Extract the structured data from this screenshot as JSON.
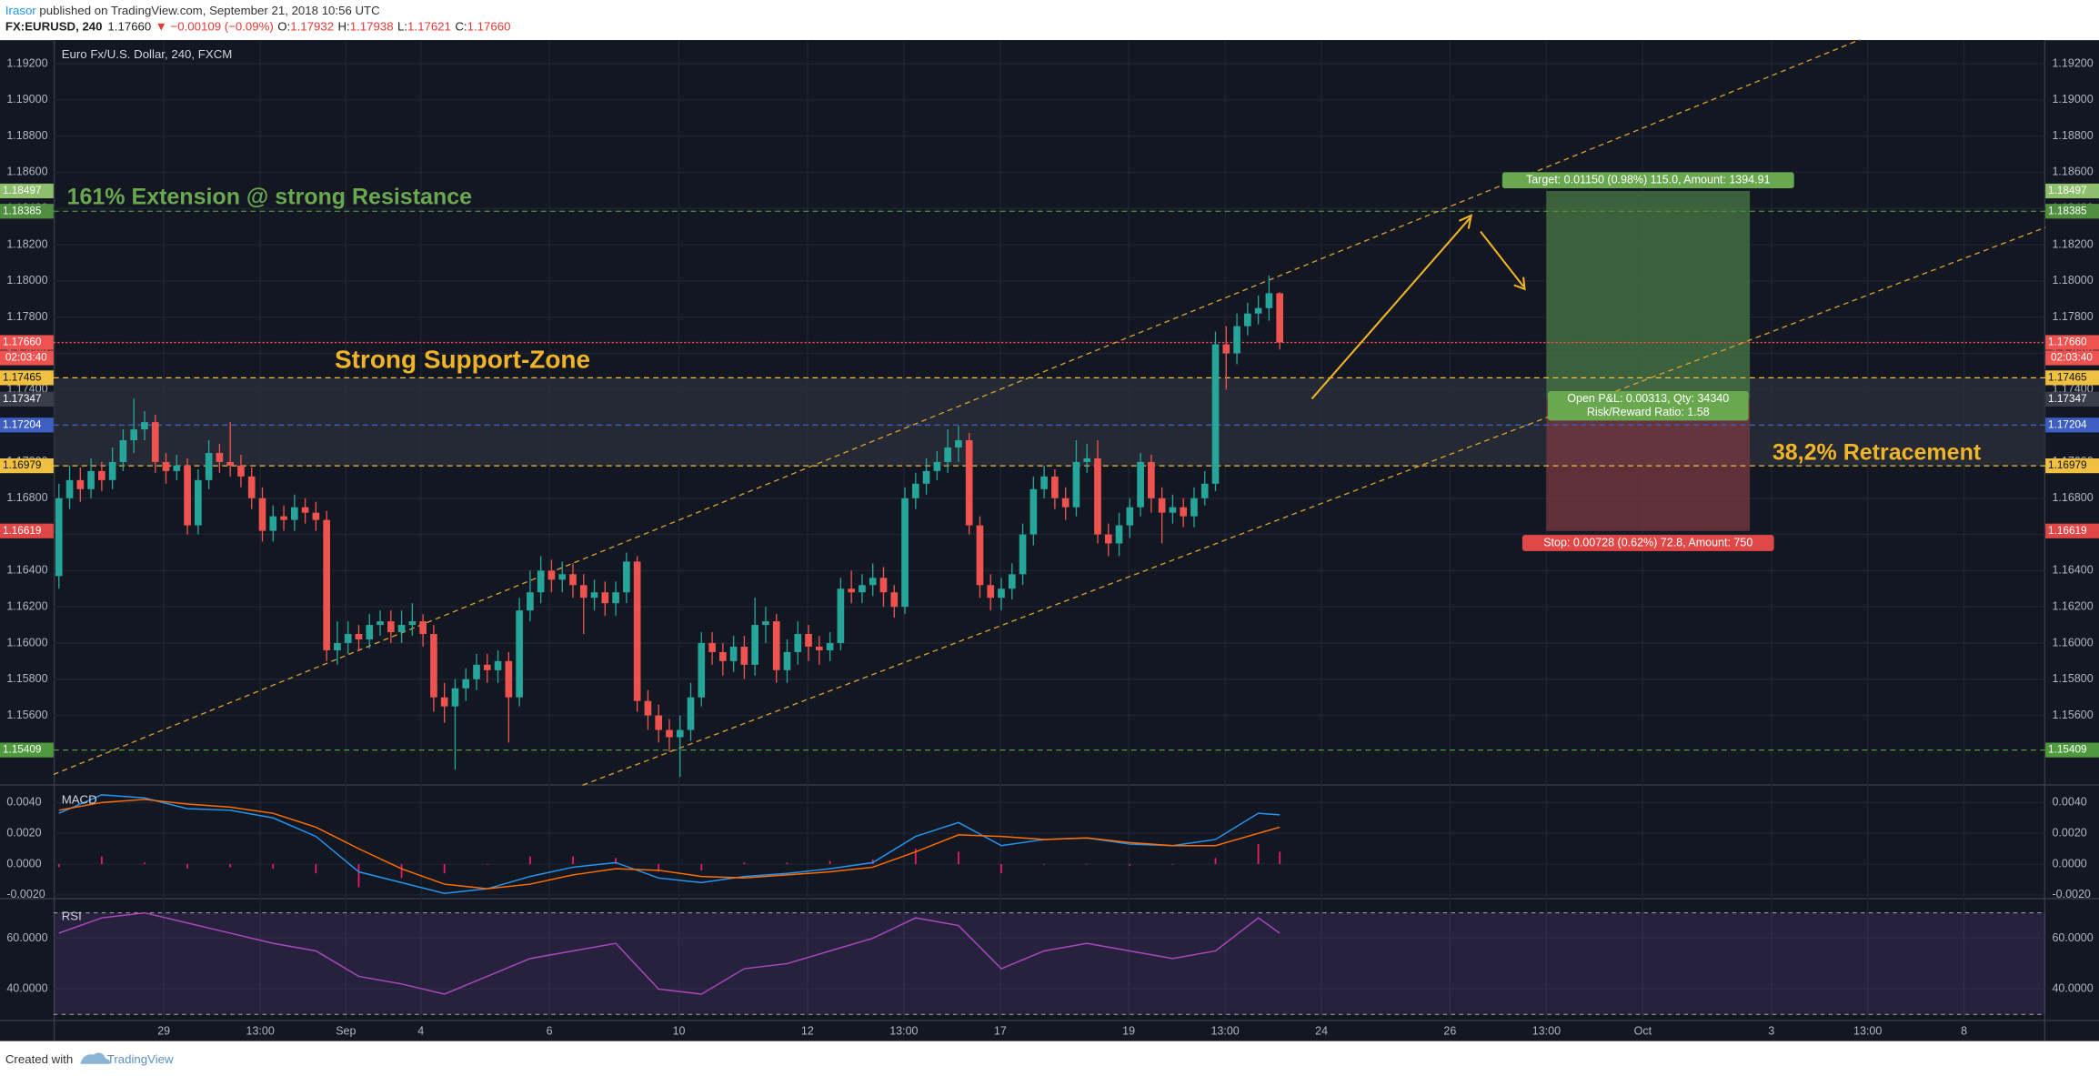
{
  "header": {
    "author": "Irasor",
    "published": " published on TradingView.com, September 21, 2018 10:56 UTC",
    "symbol": "FX:EURUSD, 240",
    "price": "1.17660",
    "change": "▼ −0.00109 (−0.09%)",
    "ohlc": [
      {
        "key": "O:",
        "value": "1.17932"
      },
      {
        "key": "H:",
        "value": "1.17938"
      },
      {
        "key": "L:",
        "value": "1.17621"
      },
      {
        "key": "C:",
        "value": "1.17660"
      }
    ]
  },
  "footer": {
    "created": "Created with",
    "brand": "TradingView"
  },
  "chart_data": {
    "type": "candlestick",
    "title": "Euro Fx/U.S. Dollar, 240, FXCM",
    "open": [
      1.1637,
      1.168,
      1.169,
      1.1685,
      1.1695,
      1.169,
      1.17,
      1.1712,
      1.1718,
      1.1722,
      1.17,
      1.1695,
      1.1698,
      1.1665,
      1.169,
      1.1705,
      1.17,
      1.1698,
      1.1692,
      1.168,
      1.1662,
      1.167,
      1.1668,
      1.1675,
      1.1672,
      1.1668,
      1.1596,
      1.16,
      1.1605,
      1.1602,
      1.161,
      1.1612,
      1.1606,
      1.161,
      1.1612,
      1.1605,
      1.157,
      1.1565,
      1.1575,
      1.158,
      1.1588,
      1.1585,
      1.159,
      1.157,
      1.1618,
      1.1628,
      1.164,
      1.1635,
      1.1638,
      1.1632,
      1.1625,
      1.1628,
      1.1622,
      1.1628,
      1.1645,
      1.1568,
      1.156,
      1.1552,
      1.1548,
      1.1552,
      1.157,
      1.16,
      1.1595,
      1.159,
      1.1598,
      1.1588,
      1.161,
      1.1612,
      1.1585,
      1.1595,
      1.1605,
      1.1598,
      1.1596,
      1.16,
      1.163,
      1.1628,
      1.1632,
      1.1636,
      1.1628,
      1.162,
      1.168,
      1.1688,
      1.1695,
      1.17,
      1.1708,
      1.1712,
      1.1665,
      1.1632,
      1.1625,
      1.163,
      1.1638,
      1.166,
      1.1685,
      1.1692,
      1.168,
      1.1675,
      1.17,
      1.1702,
      1.166,
      1.1655,
      1.1665,
      1.1675,
      1.17,
      1.168,
      1.1672,
      1.1675,
      1.167,
      1.168,
      1.1688,
      1.1765,
      1.176,
      1.1775,
      1.1782,
      1.1785,
      1.17932
    ],
    "high": [
      1.1688,
      1.1698,
      1.1697,
      1.1702,
      1.17,
      1.1708,
      1.1718,
      1.1735,
      1.1728,
      1.1726,
      1.1705,
      1.1704,
      1.1702,
      1.1696,
      1.1712,
      1.171,
      1.1722,
      1.1704,
      1.1697,
      1.1686,
      1.1676,
      1.1676,
      1.1682,
      1.168,
      1.1678,
      1.1673,
      1.1612,
      1.1612,
      1.161,
      1.1616,
      1.1618,
      1.1618,
      1.1618,
      1.1622,
      1.1616,
      1.161,
      1.1578,
      1.158,
      1.1586,
      1.1594,
      1.1594,
      1.1596,
      1.1595,
      1.1625,
      1.164,
      1.1648,
      1.1646,
      1.1645,
      1.1644,
      1.1638,
      1.1635,
      1.1634,
      1.1634,
      1.165,
      1.1648,
      1.1574,
      1.1566,
      1.1558,
      1.156,
      1.1578,
      1.1606,
      1.1606,
      1.16,
      1.1604,
      1.1604,
      1.1625,
      1.162,
      1.1616,
      1.1602,
      1.1612,
      1.161,
      1.1604,
      1.1606,
      1.1636,
      1.164,
      1.1638,
      1.1644,
      1.1642,
      1.1632,
      1.1686,
      1.1694,
      1.1702,
      1.1706,
      1.1718,
      1.172,
      1.1716,
      1.167,
      1.1638,
      1.1636,
      1.1644,
      1.1666,
      1.1692,
      1.1698,
      1.1696,
      1.1686,
      1.1712,
      1.171,
      1.1712,
      1.1666,
      1.1672,
      1.168,
      1.1705,
      1.1704,
      1.1686,
      1.1682,
      1.168,
      1.1686,
      1.1695,
      1.1772,
      1.1775,
      1.1782,
      1.1788,
      1.1792,
      1.1803,
      1.17938
    ],
    "low": [
      1.163,
      1.1674,
      1.1678,
      1.168,
      1.1684,
      1.1685,
      1.1695,
      1.1705,
      1.1712,
      1.1694,
      1.1688,
      1.169,
      1.166,
      1.166,
      1.1685,
      1.1694,
      1.1692,
      1.1686,
      1.1674,
      1.1656,
      1.1656,
      1.1662,
      1.1662,
      1.1666,
      1.1662,
      1.159,
      1.1588,
      1.1594,
      1.1596,
      1.1597,
      1.1604,
      1.16,
      1.16,
      1.1604,
      1.1598,
      1.1562,
      1.1556,
      1.153,
      1.1568,
      1.1574,
      1.1578,
      1.1578,
      1.1545,
      1.1565,
      1.1612,
      1.1622,
      1.1628,
      1.1628,
      1.1625,
      1.1605,
      1.1618,
      1.1615,
      1.1615,
      1.1622,
      1.1562,
      1.1552,
      1.1545,
      1.154,
      1.1526,
      1.1546,
      1.1565,
      1.1588,
      1.1582,
      1.1584,
      1.158,
      1.1582,
      1.16,
      1.1578,
      1.1578,
      1.1588,
      1.159,
      1.1588,
      1.159,
      1.1596,
      1.1622,
      1.1622,
      1.1626,
      1.162,
      1.1614,
      1.1616,
      1.1674,
      1.1682,
      1.169,
      1.1694,
      1.17,
      1.166,
      1.1625,
      1.1618,
      1.1618,
      1.1624,
      1.1632,
      1.1654,
      1.168,
      1.1674,
      1.1668,
      1.167,
      1.1694,
      1.1655,
      1.1648,
      1.1648,
      1.1658,
      1.167,
      1.1672,
      1.1655,
      1.1666,
      1.1664,
      1.1664,
      1.1676,
      1.1684,
      1.174,
      1.1754,
      1.177,
      1.1776,
      1.1778,
      1.17621
    ],
    "close": [
      1.168,
      1.169,
      1.1685,
      1.1695,
      1.169,
      1.17,
      1.1712,
      1.1718,
      1.1722,
      1.17,
      1.1695,
      1.1698,
      1.1665,
      1.169,
      1.1705,
      1.17,
      1.1698,
      1.1692,
      1.168,
      1.1662,
      1.167,
      1.1668,
      1.1675,
      1.1672,
      1.1668,
      1.1596,
      1.16,
      1.1605,
      1.1602,
      1.161,
      1.1612,
      1.1606,
      1.161,
      1.1612,
      1.1605,
      1.157,
      1.1565,
      1.1575,
      1.158,
      1.1588,
      1.1585,
      1.159,
      1.157,
      1.1618,
      1.1628,
      1.164,
      1.1635,
      1.1638,
      1.1632,
      1.1625,
      1.1628,
      1.1622,
      1.1628,
      1.1645,
      1.1568,
      1.156,
      1.1552,
      1.1548,
      1.1552,
      1.157,
      1.16,
      1.1595,
      1.159,
      1.1598,
      1.1588,
      1.161,
      1.1612,
      1.1585,
      1.1595,
      1.1605,
      1.1598,
      1.1596,
      1.16,
      1.163,
      1.1628,
      1.1632,
      1.1636,
      1.1628,
      1.162,
      1.168,
      1.1688,
      1.1695,
      1.17,
      1.1708,
      1.1712,
      1.1665,
      1.1632,
      1.1625,
      1.163,
      1.1638,
      1.166,
      1.1685,
      1.1692,
      1.168,
      1.1675,
      1.17,
      1.1702,
      1.166,
      1.1655,
      1.1665,
      1.1675,
      1.17,
      1.168,
      1.1672,
      1.1675,
      1.167,
      1.168,
      1.1688,
      1.1765,
      1.176,
      1.1775,
      1.1782,
      1.1785,
      1.17932,
      1.1766
    ],
    "up_color": "#26a69a",
    "down_color": "#ef5350",
    "xlim": [
      -0.5,
      185.5
    ],
    "xticks": [
      {
        "value": 9.8,
        "label": "29"
      },
      {
        "value": 18.8,
        "label": "13:00"
      },
      {
        "value": 26.8,
        "label": "Sep"
      },
      {
        "value": 33.8,
        "label": "4"
      },
      {
        "value": 45.8,
        "label": "6"
      },
      {
        "value": 57.9,
        "label": "10"
      },
      {
        "value": 69.9,
        "label": "12"
      },
      {
        "value": 78.9,
        "label": "13:00"
      },
      {
        "value": 87.9,
        "label": "17"
      },
      {
        "value": 99.9,
        "label": "19"
      },
      {
        "value": 108.9,
        "label": "13:00"
      },
      {
        "value": 117.9,
        "label": "24"
      },
      {
        "value": 129.9,
        "label": "26"
      },
      {
        "value": 138.9,
        "label": "13:00"
      },
      {
        "value": 147.9,
        "label": "Oct"
      },
      {
        "value": 159.9,
        "label": "3"
      },
      {
        "value": 168.9,
        "label": "13:00"
      },
      {
        "value": 177.9,
        "label": "8"
      }
    ],
    "ylim": [
      1.1522,
      1.1933
    ],
    "yticks": [
      {
        "value": 1.156,
        "label": "1.15600"
      },
      {
        "value": 1.158,
        "label": "1.15800"
      },
      {
        "value": 1.16,
        "label": "1.16000"
      },
      {
        "value": 1.162,
        "label": "1.16200"
      },
      {
        "value": 1.164,
        "label": "1.16400"
      },
      {
        "value": 1.166,
        "label": "1.16600"
      },
      {
        "value": 1.168,
        "label": "1.16800"
      },
      {
        "value": 1.17,
        "label": "1.17000"
      },
      {
        "value": 1.172,
        "label": "1.17200"
      },
      {
        "value": 1.174,
        "label": "1.17400"
      },
      {
        "value": 1.176,
        "label": "1.17600"
      },
      {
        "value": 1.178,
        "label": "1.17800"
      },
      {
        "value": 1.18,
        "label": "1.18000"
      },
      {
        "value": 1.182,
        "label": "1.18200"
      },
      {
        "value": 1.184,
        "label": "1.18400"
      },
      {
        "value": 1.186,
        "label": "1.18600"
      },
      {
        "value": 1.188,
        "label": "1.18800"
      },
      {
        "value": 1.19,
        "label": "1.19000"
      },
      {
        "value": 1.192,
        "label": "1.19200"
      }
    ],
    "grid": true,
    "zone": {
      "from": 1.16979,
      "to": 1.17465,
      "color": "#2a2e39"
    },
    "levels": [
      {
        "value": 1.18497,
        "label": "1.18497",
        "color": "#8dbf6c"
      },
      {
        "value": 1.18385,
        "label": "1.18385",
        "color": "#4f8f3f",
        "line": "dashed"
      },
      {
        "value": 1.1766,
        "label": "1.17660",
        "color": "#ef5350",
        "line": "dotted"
      },
      {
        "value": 1.17465,
        "label": "1.17465",
        "color": "#f0c040",
        "line": "dashed"
      },
      {
        "value": 1.17347,
        "label": "1.17347",
        "color": "#3a3e4a"
      },
      {
        "value": 1.17204,
        "label": "1.17204",
        "color": "#3d5fc4",
        "line": "dashed"
      },
      {
        "value": 1.16979,
        "label": "1.16979",
        "color": "#f0c040",
        "line": "dashed"
      },
      {
        "value": 1.16619,
        "label": "1.16619",
        "color": "#e04848"
      },
      {
        "value": 1.15409,
        "label": "1.15409",
        "color": "#4f9a3f",
        "line": "dashed"
      }
    ],
    "countdown": "02:03:40",
    "trendlines": [
      {
        "color": "#d9a030",
        "points": [
          [
            -0.5,
            1.15274
          ],
          [
            168.2,
            1.19333
          ]
        ]
      },
      {
        "color": "#d9a030",
        "points": [
          [
            48.9,
            1.15215
          ],
          [
            185.5,
            1.18296
          ]
        ]
      }
    ],
    "position": {
      "x_from": 138.9,
      "x_to": 157.9,
      "entry": 1.17347,
      "target": 1.18497,
      "stop": 1.16619,
      "target_label": "Target: 0.01150 (0.98%) 115.0, Amount: 1394.91",
      "pnl_label": "Open P&L: 0.00313, Qty: 34340",
      "ratio_label": "Risk/Reward Ratio: 1.58",
      "stop_label": "Stop: 0.00728 (0.62%) 72.8, Amount: 750"
    },
    "annotations": [
      {
        "text": "161% Extension @ strong Resistance",
        "color": "#6aa84f"
      },
      {
        "text": "Strong Support-Zone",
        "color": "#f0b429"
      },
      {
        "text": "38,2% Retracement",
        "color": "#f0b429"
      }
    ]
  },
  "macd": {
    "title": "MACD",
    "x": [
      0,
      4,
      8,
      12,
      16,
      20,
      24,
      28,
      32,
      36,
      40,
      44,
      48,
      52,
      56,
      60,
      64,
      68,
      72,
      76,
      80,
      84,
      88,
      92,
      96,
      100,
      104,
      108,
      112,
      114
    ],
    "ylim": [
      -0.0022,
      0.0051
    ],
    "yticks": [
      {
        "value": 0.004,
        "label": "0.0040"
      },
      {
        "value": 0.002,
        "label": "0.0020"
      },
      {
        "value": 0,
        "label": "0.0000"
      },
      {
        "value": -0.002,
        "label": "-0.0020"
      }
    ],
    "series": [
      {
        "color": "#2196f3",
        "values": [
          0.0033,
          0.0045,
          0.0043,
          0.0036,
          0.0035,
          0.003,
          0.0018,
          -0.0005,
          -0.0012,
          -0.0019,
          -0.0016,
          -0.0008,
          -0.0002,
          0.0001,
          -0.0009,
          -0.0012,
          -0.0008,
          -0.0006,
          -0.0003,
          0.0001,
          0.0018,
          0.0027,
          0.0012,
          0.0016,
          0.0017,
          0.0013,
          0.0012,
          0.0016,
          0.0033,
          0.0032
        ]
      },
      {
        "color": "#ff6d00",
        "values": [
          0.0035,
          0.004,
          0.0042,
          0.0039,
          0.0037,
          0.0033,
          0.0024,
          0.001,
          -0.0003,
          -0.0013,
          -0.0016,
          -0.0013,
          -0.0007,
          -0.0003,
          -0.0004,
          -0.0008,
          -0.0009,
          -0.0007,
          -0.0005,
          -0.0002,
          0.0008,
          0.0019,
          0.0018,
          0.0016,
          0.0017,
          0.0014,
          0.0012,
          0.0012,
          0.002,
          0.0024
        ]
      }
    ],
    "histogram": {
      "color": "#e91e63",
      "values": [
        -0.0002,
        0.0005,
        0.0001,
        -0.0003,
        -0.0002,
        -0.0003,
        -0.0006,
        -0.0015,
        -0.0009,
        -0.0006,
        0,
        0.0005,
        0.0005,
        0.0004,
        -0.0005,
        -0.0004,
        0.0001,
        0.0001,
        0.0002,
        0.0003,
        0.001,
        0.0008,
        -0.0006,
        0,
        0,
        -0.0001,
        0,
        0.0004,
        0.0013,
        0.0008
      ]
    }
  },
  "rsi": {
    "title": "RSI",
    "x": [
      0,
      4,
      8,
      12,
      16,
      20,
      24,
      28,
      32,
      36,
      40,
      44,
      48,
      52,
      56,
      60,
      64,
      68,
      72,
      76,
      80,
      84,
      88,
      92,
      96,
      100,
      104,
      108,
      112,
      114
    ],
    "ylim": [
      27.9,
      75.3
    ],
    "yticks": [
      {
        "value": 60,
        "label": "60.0000"
      },
      {
        "value": 40,
        "label": "40.0000"
      }
    ],
    "bands": [
      30,
      70
    ],
    "color": "#ab47bc",
    "values": [
      62,
      68,
      70,
      66,
      62,
      58,
      55,
      45,
      42,
      38,
      45,
      52,
      55,
      58,
      40,
      38,
      48,
      50,
      55,
      60,
      68,
      65,
      48,
      55,
      58,
      55,
      52,
      55,
      68,
      62
    ]
  }
}
